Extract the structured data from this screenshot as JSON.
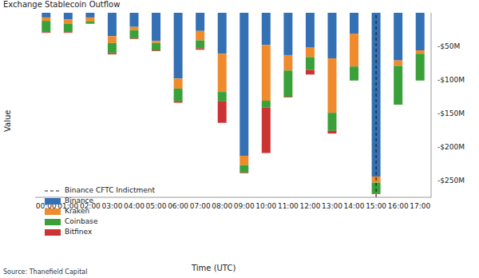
{
  "chart_data": {
    "type": "bar",
    "title": "Exchange Stablecoin Outflow",
    "x_label": "Time (UTC)",
    "y_label": "Value",
    "source": "Source: Thanefield Capital",
    "stacked": true,
    "legend": "lower left",
    "grid": false,
    "categories": [
      "00:00",
      "01:00",
      "02:00",
      "03:00",
      "04:00",
      "05:00",
      "06:00",
      "07:00",
      "08:00",
      "09:00",
      "10:00",
      "11:00",
      "12:00",
      "13:00",
      "14:00",
      "15:00",
      "16:00",
      "17:00"
    ],
    "series": [
      {
        "name": "Binance",
        "color": "#3470b4",
        "values": [
          -7,
          -10,
          -7,
          -35,
          -21,
          -42,
          -98,
          -27,
          -61,
          -213,
          -48,
          -63,
          -52,
          -68,
          -31,
          -244,
          -71,
          -56
        ]
      },
      {
        "name": "Kraken",
        "color": "#ef8b2c",
        "values": [
          -5,
          -6,
          -6,
          -10,
          -5,
          -3,
          -15,
          -14,
          -57,
          -14,
          -83,
          -23,
          -14,
          -81,
          -49,
          -9,
          -8,
          -5
        ]
      },
      {
        "name": "Coinbase",
        "color": "#3aa13a",
        "values": [
          -17,
          -13,
          -3,
          -15,
          -12,
          -11,
          -19,
          -12,
          -14,
          -11,
          -10,
          -39,
          -19,
          -27,
          -21,
          -16,
          -58,
          -40
        ]
      },
      {
        "name": "Bitfinex",
        "color": "#cc3333",
        "values": [
          -1,
          -1,
          -0.5,
          -2,
          -1,
          -1,
          -2,
          -2,
          -32,
          -1,
          -68,
          -1,
          -7,
          -4,
          0,
          -1,
          0,
          0
        ]
      }
    ],
    "annotations": [
      {
        "x": "15:00",
        "label": "Binance CFTC Indictment",
        "line_style": "dashed",
        "color": "#222222"
      }
    ],
    "ylim": [
      -275,
      0
    ],
    "yticks": [
      {
        "value": -250,
        "label": "-$250M"
      },
      {
        "value": -200,
        "label": "-$200M"
      },
      {
        "value": -150,
        "label": "-$150M"
      },
      {
        "value": -100,
        "label": "-$100M"
      },
      {
        "value": -50,
        "label": "-$50M"
      }
    ]
  }
}
